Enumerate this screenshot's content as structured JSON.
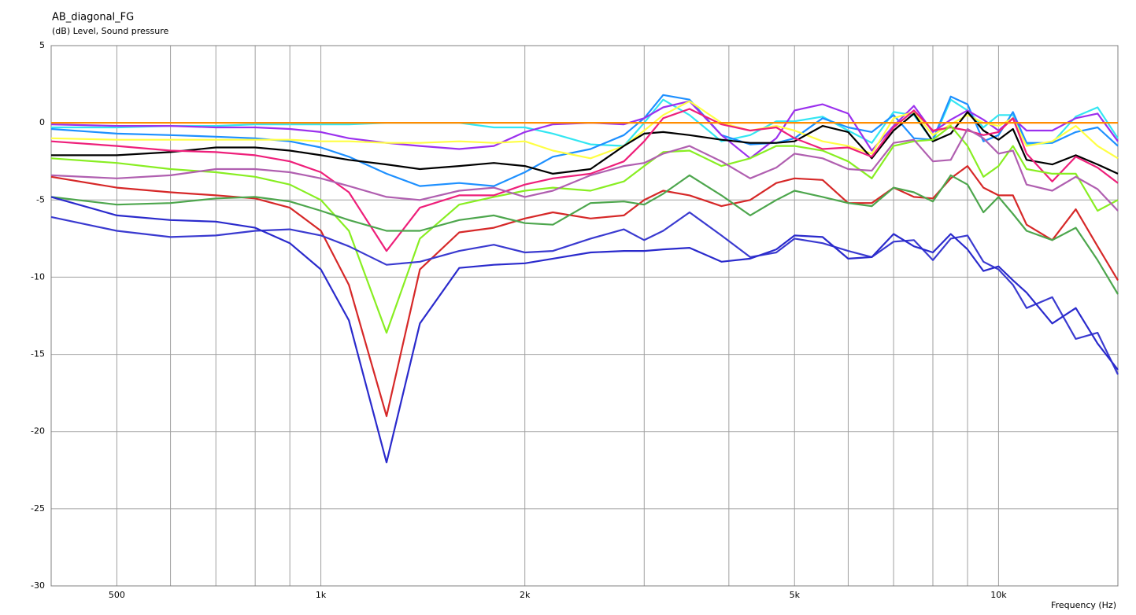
{
  "chart_data": {
    "type": "line",
    "title": "AB_diagonal_FG",
    "y_label": "(dB)  Level, Sound pressure",
    "x_label": "Frequency  (Hz)",
    "xscale": "log",
    "xlim": [
      400,
      15000
    ],
    "ylim": [
      -30,
      5
    ],
    "xticks": [
      500,
      {
        "value": 1000,
        "label": "1k"
      },
      {
        "value": 2000,
        "label": "2k"
      },
      {
        "value": 5000,
        "label": "5k"
      },
      {
        "value": 10000,
        "label": "10k"
      }
    ],
    "x_minor_grid": [
      600,
      700,
      800,
      900,
      3000,
      4000,
      6000,
      7000,
      8000,
      9000
    ],
    "yticks": [
      5,
      0,
      -5,
      -10,
      -15,
      -20,
      -25,
      -30
    ],
    "grid": true,
    "x": [
      400,
      500,
      600,
      700,
      800,
      900,
      1000,
      1100,
      1250,
      1400,
      1600,
      1800,
      2000,
      2200,
      2500,
      2800,
      3000,
      3200,
      3500,
      3900,
      4300,
      4700,
      5000,
      5500,
      6000,
      6500,
      7000,
      7500,
      8000,
      8500,
      9000,
      9500,
      10000,
      10500,
      11000,
      12000,
      13000,
      14000,
      15000
    ],
    "series": [
      {
        "color": "#33e6f2",
        "values": [
          -0.3,
          -0.3,
          -0.2,
          -0.2,
          -0.1,
          -0.1,
          -0.1,
          -0.1,
          0,
          0,
          0,
          -0.3,
          -0.3,
          -0.7,
          -1.4,
          -1.5,
          0,
          1.5,
          0.5,
          -1.2,
          -0.8,
          0.1,
          0.1,
          0.4,
          -0.5,
          -1.3,
          0.7,
          0.5,
          -1.2,
          1.5,
          0.8,
          -0.3,
          0.5,
          0.5,
          -1.4,
          -1.3,
          0.4,
          1.0,
          -1.0
        ]
      },
      {
        "color": "#1e90ff",
        "values": [
          -0.4,
          -0.7,
          -0.8,
          -0.9,
          -1.0,
          -1.2,
          -1.6,
          -2.2,
          -3.3,
          -4.1,
          -3.9,
          -4.1,
          -3.2,
          -2.2,
          -1.7,
          -0.8,
          0.3,
          1.8,
          1.5,
          -0.8,
          -1.4,
          -1.3,
          -1.0,
          0.3,
          -0.3,
          -0.6,
          0.5,
          -1.0,
          -1.1,
          1.7,
          1.2,
          -1.2,
          -0.8,
          0.7,
          -1.3,
          -1.3,
          -0.6,
          -0.3,
          -1.5
        ]
      },
      {
        "color": "#9b30ee",
        "values": [
          -0.1,
          -0.2,
          -0.2,
          -0.3,
          -0.3,
          -0.4,
          -0.6,
          -1.0,
          -1.3,
          -1.5,
          -1.7,
          -1.5,
          -0.6,
          -0.1,
          0,
          -0.1,
          0.3,
          1.0,
          1.4,
          -0.8,
          -2.3,
          -1.0,
          0.8,
          1.2,
          0.6,
          -1.8,
          -0.2,
          1.1,
          -0.6,
          0.2,
          0.8,
          0.2,
          -0.5,
          0.3,
          -0.5,
          -0.5,
          0.3,
          0.6,
          -1.2
        ]
      },
      {
        "color": "#ffff44",
        "values": [
          -1.0,
          -1.1,
          -1.1,
          -1.1,
          -1.1,
          -1.1,
          -1.2,
          -1.2,
          -1.3,
          -1.3,
          -1.2,
          -1.3,
          -1.2,
          -1.8,
          -2.3,
          -1.5,
          -0.5,
          0.5,
          1.4,
          0,
          -0.5,
          -0.2,
          -0.5,
          -1.2,
          -1.5,
          -2.0,
          0.3,
          0.7,
          -0.8,
          -0.1,
          0.5,
          0,
          -0.2,
          0.3,
          -1.5,
          -1.2,
          -0.2,
          -1.5,
          -2.3
        ]
      },
      {
        "color": "#000000",
        "values": [
          -2.1,
          -2.1,
          -1.9,
          -1.6,
          -1.6,
          -1.8,
          -2.1,
          -2.4,
          -2.7,
          -3.0,
          -2.8,
          -2.6,
          -2.8,
          -3.3,
          -3.0,
          -1.5,
          -0.7,
          -0.6,
          -0.8,
          -1.1,
          -1.3,
          -1.3,
          -1.2,
          -0.2,
          -0.6,
          -2.3,
          -0.5,
          0.6,
          -1.2,
          -0.7,
          0.7,
          -0.5,
          -1.1,
          -0.4,
          -2.4,
          -2.7,
          -2.1,
          -2.7,
          -3.3
        ]
      },
      {
        "color": "#ee1f7a",
        "values": [
          -1.2,
          -1.5,
          -1.8,
          -1.9,
          -2.1,
          -2.5,
          -3.2,
          -4.5,
          -8.3,
          -5.5,
          -4.7,
          -4.7,
          -4.0,
          -3.6,
          -3.3,
          -2.5,
          -1.2,
          0.3,
          0.9,
          -0.1,
          -0.5,
          -0.3,
          -1.0,
          -1.7,
          -1.6,
          -2.2,
          -0.3,
          0.8,
          -0.5,
          -0.3,
          -0.5,
          -0.8,
          -0.6,
          0.3,
          -2.0,
          -3.8,
          -2.2,
          -2.9,
          -3.9
        ]
      },
      {
        "color": "#88ee22",
        "values": [
          -2.3,
          -2.6,
          -3.0,
          -3.2,
          -3.5,
          -4.0,
          -5.0,
          -7.0,
          -13.6,
          -7.5,
          -5.3,
          -4.8,
          -4.4,
          -4.2,
          -4.4,
          -3.8,
          -2.8,
          -1.9,
          -1.8,
          -2.8,
          -2.3,
          -1.5,
          -1.5,
          -1.8,
          -2.5,
          -3.6,
          -1.5,
          -1.2,
          -1.1,
          -0.2,
          -1.5,
          -3.5,
          -2.8,
          -1.5,
          -3.0,
          -3.3,
          -3.3,
          -5.7,
          -5.0
        ]
      },
      {
        "color": "#b05fb0",
        "values": [
          -3.4,
          -3.6,
          -3.4,
          -3.0,
          -3.0,
          -3.2,
          -3.6,
          -4.1,
          -4.8,
          -5.0,
          -4.4,
          -4.2,
          -4.8,
          -4.4,
          -3.4,
          -2.8,
          -2.6,
          -2.0,
          -1.5,
          -2.5,
          -3.6,
          -2.9,
          -2.0,
          -2.3,
          -3.0,
          -3.1,
          -1.3,
          -1.1,
          -2.5,
          -2.4,
          -0.4,
          -1.0,
          -2.0,
          -1.8,
          -4.0,
          -4.4,
          -3.5,
          -4.3,
          -5.7
        ]
      },
      {
        "color": "#d62828",
        "values": [
          -3.5,
          -4.2,
          -4.5,
          -4.7,
          -4.9,
          -5.5,
          -7.0,
          -10.5,
          -19.0,
          -9.5,
          -7.1,
          -6.8,
          -6.2,
          -5.8,
          -6.2,
          -6.0,
          -5.0,
          -4.4,
          -4.7,
          -5.4,
          -5.0,
          -3.9,
          -3.6,
          -3.7,
          -5.2,
          -5.2,
          -4.2,
          -4.8,
          -4.9,
          -3.6,
          -2.8,
          -4.2,
          -4.7,
          -4.7,
          -6.6,
          -7.6,
          -5.6,
          -8.0,
          -10.2
        ]
      },
      {
        "color": "#4da64d",
        "values": [
          -4.8,
          -5.3,
          -5.2,
          -4.9,
          -4.8,
          -5.1,
          -5.7,
          -6.3,
          -7.0,
          -7.0,
          -6.3,
          -6.0,
          -6.5,
          -6.6,
          -5.2,
          -5.1,
          -5.3,
          -4.6,
          -3.4,
          -4.7,
          -6.0,
          -5.0,
          -4.4,
          -4.8,
          -5.2,
          -5.4,
          -4.2,
          -4.5,
          -5.1,
          -3.4,
          -4.0,
          -5.8,
          -4.8,
          -5.9,
          -7.0,
          -7.6,
          -6.8,
          -8.9,
          -11.1
        ]
      },
      {
        "color": "#3a3ad0",
        "values": [
          -6.1,
          -7.0,
          -7.4,
          -7.3,
          -7.0,
          -6.9,
          -7.3,
          -8.0,
          -9.2,
          -9.0,
          -8.3,
          -7.9,
          -8.4,
          -8.3,
          -7.5,
          -6.9,
          -7.6,
          -7.0,
          -5.8,
          -7.3,
          -8.7,
          -8.4,
          -7.5,
          -7.8,
          -8.3,
          -8.7,
          -7.7,
          -7.6,
          -8.9,
          -7.5,
          -7.3,
          -9.0,
          -9.5,
          -10.5,
          -12.0,
          -11.3,
          -14.0,
          -13.6,
          -16.3
        ]
      },
      {
        "color": "#2a2acc",
        "values": [
          -4.8,
          -6.0,
          -6.3,
          -6.4,
          -6.8,
          -7.8,
          -9.5,
          -12.8,
          -22.0,
          -13.0,
          -9.4,
          -9.2,
          -9.1,
          -8.8,
          -8.4,
          -8.3,
          -8.3,
          -8.2,
          -8.1,
          -9.0,
          -8.8,
          -8.2,
          -7.3,
          -7.4,
          -8.8,
          -8.7,
          -7.2,
          -8.0,
          -8.4,
          -7.2,
          -8.2,
          -9.6,
          -9.3,
          -10.2,
          -11.0,
          -13.0,
          -12.0,
          -14.3,
          -16.0
        ]
      },
      {
        "color": "#ff8c00",
        "values": [
          0,
          0,
          0,
          0,
          0,
          0,
          0,
          0,
          0,
          0,
          0,
          0,
          0,
          0,
          0,
          0,
          0,
          0,
          0,
          0,
          0,
          0,
          0,
          0,
          0,
          0,
          0,
          0,
          0,
          0,
          0,
          0,
          0,
          0,
          0,
          0,
          0,
          0,
          0
        ]
      }
    ]
  }
}
